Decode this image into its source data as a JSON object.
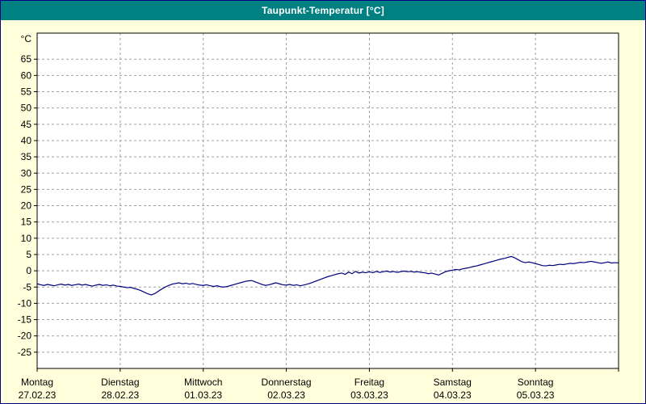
{
  "title": "Taupunkt-Temperatur [°C]",
  "colors": {
    "titlebar_bg": "#008080",
    "titlebar_text": "#ffffff",
    "window_bg": "#ffffdc",
    "window_border": "#000080",
    "plot_bg": "#ffffff",
    "plot_border": "#000000",
    "grid": "#a0a0a0",
    "axis_text": "#000000",
    "line": "#000080"
  },
  "chart_data": {
    "type": "line",
    "title": "Taupunkt-Temperatur [°C]",
    "y_unit_label": "°C",
    "y_ticks": [
      65,
      60,
      55,
      50,
      45,
      40,
      35,
      30,
      25,
      20,
      15,
      10,
      5,
      0,
      -5,
      -10,
      -15,
      -20,
      -25
    ],
    "ylim": [
      -30,
      73
    ],
    "grid": "dashed",
    "legend": "none",
    "x_hours_total": 168,
    "x_days": [
      {
        "name": "Montag",
        "date": "27.02.23"
      },
      {
        "name": "Dienstag",
        "date": "28.02.23"
      },
      {
        "name": "Mittwoch",
        "date": "01.03.23"
      },
      {
        "name": "Donnerstag",
        "date": "02.03.23"
      },
      {
        "name": "Freitag",
        "date": "03.03.23"
      },
      {
        "name": "Samstag",
        "date": "04.03.23"
      },
      {
        "name": "Sonntag",
        "date": "05.03.23"
      }
    ],
    "series": [
      {
        "name": "Taupunkt-Temperatur",
        "unit": "°C",
        "color": "#000080",
        "values_hourly": [
          -4.0,
          -4.3,
          -4.5,
          -4.2,
          -4.4,
          -4.6,
          -4.3,
          -4.1,
          -4.4,
          -4.2,
          -4.5,
          -4.3,
          -4.1,
          -4.4,
          -4.2,
          -4.5,
          -4.7,
          -4.4,
          -4.2,
          -4.5,
          -4.3,
          -4.6,
          -4.4,
          -4.7,
          -4.8,
          -5.0,
          -5.2,
          -5.1,
          -5.4,
          -5.7,
          -6.1,
          -6.6,
          -7.1,
          -7.4,
          -7.0,
          -6.3,
          -5.6,
          -5.0,
          -4.5,
          -4.1,
          -3.9,
          -3.7,
          -4.0,
          -3.8,
          -4.1,
          -3.9,
          -4.2,
          -4.4,
          -4.5,
          -4.3,
          -4.6,
          -4.8,
          -4.6,
          -4.9,
          -5.0,
          -4.8,
          -4.5,
          -4.2,
          -3.9,
          -3.6,
          -3.3,
          -3.1,
          -3.0,
          -3.4,
          -3.8,
          -4.2,
          -4.5,
          -4.3,
          -4.0,
          -3.7,
          -4.0,
          -4.3,
          -4.4,
          -4.2,
          -4.5,
          -4.3,
          -4.6,
          -4.4,
          -4.1,
          -3.8,
          -3.4,
          -3.0,
          -2.6,
          -2.2,
          -1.8,
          -1.5,
          -1.2,
          -0.9,
          -0.7,
          -1.1,
          -0.4,
          -0.9,
          -0.2,
          -0.7,
          -0.4,
          -0.6,
          -0.3,
          -0.6,
          -0.2,
          -0.5,
          -0.3,
          -0.1,
          -0.4,
          -0.2,
          -0.5,
          -0.3,
          -0.1,
          -0.3,
          -0.2,
          -0.4,
          -0.3,
          -0.5,
          -0.6,
          -0.9,
          -0.7,
          -1.0,
          -1.3,
          -0.8,
          -0.3,
          0.0,
          0.2,
          0.4,
          0.3,
          0.6,
          0.8,
          1.0,
          1.3,
          1.5,
          1.8,
          2.1,
          2.4,
          2.7,
          3.0,
          3.3,
          3.6,
          3.8,
          4.1,
          4.4,
          4.0,
          3.4,
          2.8,
          2.5,
          2.7,
          2.5,
          2.2,
          1.9,
          1.6,
          1.5,
          1.7,
          1.6,
          1.8,
          2.0,
          1.9,
          2.1,
          2.3,
          2.2,
          2.4,
          2.6,
          2.5,
          2.7,
          2.9,
          2.7,
          2.5,
          2.3,
          2.5,
          2.7,
          2.4,
          2.5,
          2.4
        ]
      }
    ]
  }
}
